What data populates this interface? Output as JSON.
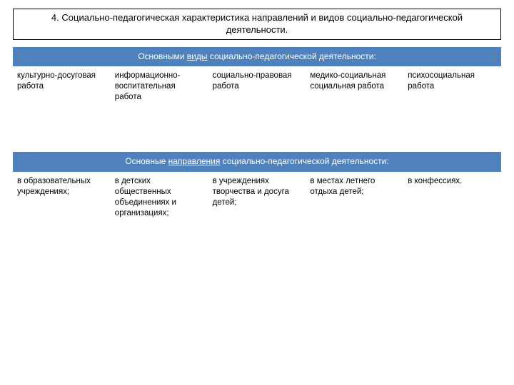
{
  "title": "4. Социально-педагогическая характеристика направлений и видов социально-педагогической деятельности.",
  "colors": {
    "header_bg": "#4f81bd",
    "header_text": "#ffffff",
    "body_bg": "#ffffff",
    "border": "#000000"
  },
  "font_family": "Arial",
  "title_fontsize": 13,
  "cell_fontsize": 11.5,
  "layout": {
    "columns": 5,
    "col_width_pct": [
      20,
      20,
      20,
      20,
      20
    ]
  },
  "types_header": {
    "prefix": "Основными ",
    "underlined": "виды",
    "suffix": " социально-педагогической деятельности:"
  },
  "types_cells": [
    " культурно-досуговая работа",
    "  информационно-воспитательная работа",
    "  социально-правовая работа",
    "медико-социальная социальная работа",
    "психосоциальная работа"
  ],
  "dirs_header": {
    "prefix": "Основные ",
    "underlined": "направления",
    "suffix": " социально-педагогической деятельности:"
  },
  "dirs_cells": [
    "в образовательных учреждениях;",
    "в детских общественных объединениях и организациях;",
    "в учреждениях творчества и досуга детей;",
    "в местах летнего отдыха детей;",
    "в конфессиях."
  ]
}
